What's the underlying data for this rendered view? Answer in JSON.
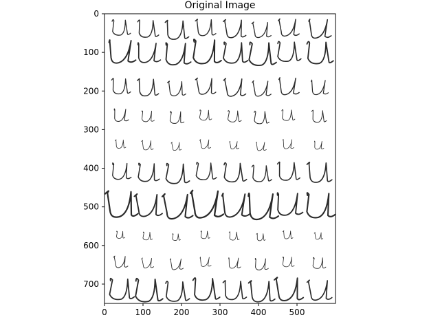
{
  "figure": {
    "title": "Original Image",
    "x_ticks": [
      "0",
      "100",
      "200",
      "300",
      "400",
      "500"
    ],
    "y_ticks": [
      "0",
      "100",
      "200",
      "300",
      "400",
      "500",
      "600",
      "700"
    ]
  },
  "image": {
    "description_rows": 10,
    "description_cols": 8,
    "glyph": "u"
  }
}
